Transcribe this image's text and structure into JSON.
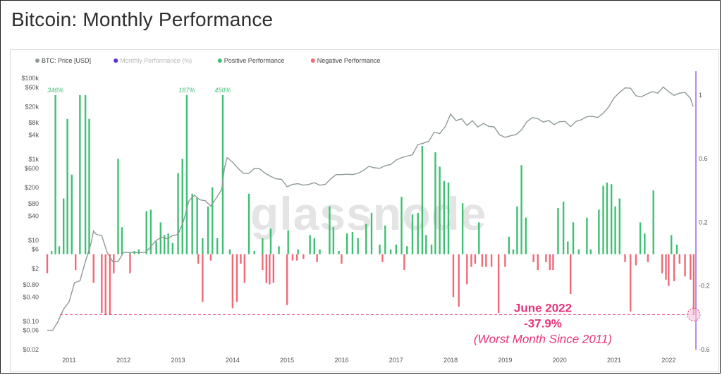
{
  "page": {
    "title": "Bitcoin: Monthly Performance"
  },
  "watermark": "glassnode",
  "colors": {
    "price": "#8e9a96",
    "monthly": "#5b2bd9",
    "positive": "#3fbf73",
    "negative": "#ee6a78",
    "annotation": "#e8337a",
    "right_axis": "#7b3fe4"
  },
  "legend": [
    {
      "label": "BTC: Price [USD]",
      "color": "#8e9a96",
      "muted": false
    },
    {
      "label": "Monthly Performance (%)",
      "color": "#5b2bd9",
      "muted": true
    },
    {
      "label": "Positive Performance",
      "color": "#3fbf73",
      "muted": false
    },
    {
      "label": "Negative Performance",
      "color": "#ee6a78",
      "muted": false
    }
  ],
  "chart_data": {
    "type": "bar",
    "title": "Bitcoin: Monthly Performance",
    "legend_position": "top-left",
    "grid": false,
    "x_ticks": [
      "2011",
      "2012",
      "2013",
      "2014",
      "2015",
      "2016",
      "2017",
      "2018",
      "2019",
      "2020",
      "2021",
      "2022"
    ],
    "x_range": [
      2010.6,
      2022.5
    ],
    "y_left": {
      "scale": "log",
      "range": [
        0.02,
        150000
      ],
      "ticks": [
        "$100k",
        "$60k",
        "$20k",
        "$8k",
        "$4k",
        "$1k",
        "$600",
        "$200",
        "$80",
        "$40",
        "$10",
        "$6",
        "$2",
        "$0.80",
        "$0.40",
        "$0.10",
        "$0.06",
        "$0.02"
      ]
    },
    "y_right": {
      "scale": "linear",
      "range": [
        -0.6,
        1.15
      ],
      "ticks": [
        "1",
        "0.6",
        "0.2",
        "-0.2",
        "-0.6"
      ]
    },
    "series": [
      {
        "name": "BTC: Price [USD]",
        "type": "line",
        "axis": "left",
        "points": [
          [
            2010.6,
            0.06
          ],
          [
            2010.7,
            0.06
          ],
          [
            2010.8,
            0.1
          ],
          [
            2010.9,
            0.2
          ],
          [
            2011.0,
            0.3
          ],
          [
            2011.1,
            0.9
          ],
          [
            2011.2,
            1
          ],
          [
            2011.3,
            3
          ],
          [
            2011.4,
            8
          ],
          [
            2011.45,
            17
          ],
          [
            2011.5,
            14
          ],
          [
            2011.6,
            13
          ],
          [
            2011.7,
            5
          ],
          [
            2011.8,
            3
          ],
          [
            2011.9,
            3
          ],
          [
            2012.0,
            5
          ],
          [
            2012.2,
            5
          ],
          [
            2012.4,
            5
          ],
          [
            2012.5,
            7
          ],
          [
            2012.6,
            10
          ],
          [
            2012.7,
            12
          ],
          [
            2012.8,
            11
          ],
          [
            2012.9,
            13
          ],
          [
            2013.0,
            14
          ],
          [
            2013.1,
            30
          ],
          [
            2013.2,
            95
          ],
          [
            2013.3,
            130
          ],
          [
            2013.4,
            100
          ],
          [
            2013.5,
            95
          ],
          [
            2013.6,
            70
          ],
          [
            2013.7,
            110
          ],
          [
            2013.8,
            180
          ],
          [
            2013.85,
            600
          ],
          [
            2013.9,
            1100
          ],
          [
            2014.0,
            850
          ],
          [
            2014.1,
            600
          ],
          [
            2014.2,
            450
          ],
          [
            2014.3,
            450
          ],
          [
            2014.4,
            600
          ],
          [
            2014.5,
            580
          ],
          [
            2014.6,
            450
          ],
          [
            2014.7,
            380
          ],
          [
            2014.8,
            330
          ],
          [
            2014.9,
            320
          ],
          [
            2015.0,
            210
          ],
          [
            2015.1,
            240
          ],
          [
            2015.2,
            250
          ],
          [
            2015.3,
            230
          ],
          [
            2015.4,
            240
          ],
          [
            2015.5,
            265
          ],
          [
            2015.6,
            230
          ],
          [
            2015.7,
            240
          ],
          [
            2015.8,
            330
          ],
          [
            2015.9,
            420
          ],
          [
            2016.0,
            420
          ],
          [
            2016.1,
            430
          ],
          [
            2016.2,
            420
          ],
          [
            2016.3,
            450
          ],
          [
            2016.4,
            530
          ],
          [
            2016.5,
            670
          ],
          [
            2016.6,
            620
          ],
          [
            2016.7,
            600
          ],
          [
            2016.8,
            700
          ],
          [
            2016.9,
            740
          ],
          [
            2017.0,
            960
          ],
          [
            2017.1,
            1100
          ],
          [
            2017.2,
            1200
          ],
          [
            2017.3,
            1300
          ],
          [
            2017.4,
            2300
          ],
          [
            2017.5,
            2500
          ],
          [
            2017.6,
            2800
          ],
          [
            2017.7,
            4700
          ],
          [
            2017.8,
            4300
          ],
          [
            2017.9,
            6400
          ],
          [
            2018.0,
            13000
          ],
          [
            2018.1,
            9000
          ],
          [
            2018.2,
            10000
          ],
          [
            2018.3,
            6900
          ],
          [
            2018.4,
            9000
          ],
          [
            2018.5,
            6300
          ],
          [
            2018.6,
            7700
          ],
          [
            2018.7,
            6500
          ],
          [
            2018.8,
            6300
          ],
          [
            2018.9,
            4000
          ],
          [
            2019.0,
            3500
          ],
          [
            2019.1,
            3800
          ],
          [
            2019.2,
            4100
          ],
          [
            2019.3,
            5300
          ],
          [
            2019.4,
            8500
          ],
          [
            2019.5,
            10800
          ],
          [
            2019.6,
            10100
          ],
          [
            2019.7,
            8300
          ],
          [
            2019.8,
            9100
          ],
          [
            2019.9,
            7200
          ],
          [
            2020.0,
            8500
          ],
          [
            2020.1,
            8600
          ],
          [
            2020.2,
            6400
          ],
          [
            2020.3,
            8600
          ],
          [
            2020.4,
            9500
          ],
          [
            2020.5,
            11300
          ],
          [
            2020.6,
            11600
          ],
          [
            2020.7,
            10800
          ],
          [
            2020.8,
            13800
          ],
          [
            2020.9,
            19700
          ],
          [
            2021.0,
            33000
          ],
          [
            2021.1,
            45000
          ],
          [
            2021.2,
            58000
          ],
          [
            2021.3,
            57000
          ],
          [
            2021.4,
            37000
          ],
          [
            2021.5,
            35000
          ],
          [
            2021.6,
            41000
          ],
          [
            2021.7,
            47000
          ],
          [
            2021.8,
            43000
          ],
          [
            2021.9,
            61000
          ],
          [
            2022.0,
            47000
          ],
          [
            2022.1,
            38000
          ],
          [
            2022.2,
            43000
          ],
          [
            2022.3,
            45000
          ],
          [
            2022.4,
            32000
          ],
          [
            2022.45,
            20000
          ]
        ]
      },
      {
        "name": "Positive Performance",
        "type": "bar",
        "axis": "right",
        "color": "#3fbf73",
        "points": [
          [
            2010.68,
            0.02
          ],
          [
            2010.75,
            1.0
          ],
          [
            2010.82,
            0.05
          ],
          [
            2010.9,
            0.35
          ],
          [
            2010.97,
            0.85
          ],
          [
            2011.05,
            0.5
          ],
          [
            2011.2,
            1.0
          ],
          [
            2011.3,
            1.0
          ],
          [
            2011.37,
            0.85
          ],
          [
            2011.9,
            0.6
          ],
          [
            2011.97,
            0.17
          ],
          [
            2012.12,
            0.01
          ],
          [
            2012.2,
            0.02
          ],
          [
            2012.28,
            0.03
          ],
          [
            2012.42,
            0.27
          ],
          [
            2012.5,
            0.28
          ],
          [
            2012.6,
            0.08
          ],
          [
            2012.68,
            0.2
          ],
          [
            2012.75,
            0.12
          ],
          [
            2012.82,
            0.13
          ],
          [
            2012.9,
            0.07
          ],
          [
            2013.0,
            0.51
          ],
          [
            2013.08,
            0.6
          ],
          [
            2013.16,
            1.0
          ],
          [
            2013.26,
            0.38
          ],
          [
            2013.35,
            0.36
          ],
          [
            2013.45,
            0.1
          ],
          [
            2013.55,
            0.3
          ],
          [
            2013.63,
            0.42
          ],
          [
            2013.72,
            0.1
          ],
          [
            2013.82,
            1.0
          ],
          [
            2013.95,
            0.03
          ],
          [
            2014.3,
            0.38
          ],
          [
            2014.4,
            0.02
          ],
          [
            2014.55,
            0.1
          ],
          [
            2014.7,
            0.16
          ],
          [
            2014.85,
            0.05
          ],
          [
            2015.02,
            0.15
          ],
          [
            2015.2,
            0.03
          ],
          [
            2015.42,
            0.12
          ],
          [
            2015.5,
            0.1
          ],
          [
            2015.6,
            0.03
          ],
          [
            2015.78,
            0.3
          ],
          [
            2015.85,
            0.17
          ],
          [
            2015.95,
            0.02
          ],
          [
            2016.1,
            0.13
          ],
          [
            2016.2,
            0.14
          ],
          [
            2016.3,
            0.1
          ],
          [
            2016.45,
            0.19
          ],
          [
            2016.55,
            0.26
          ],
          [
            2016.7,
            0.06
          ],
          [
            2016.8,
            0.18
          ],
          [
            2016.9,
            0.03
          ],
          [
            2017.0,
            0.06
          ],
          [
            2017.1,
            0.36
          ],
          [
            2017.2,
            0.05
          ],
          [
            2017.3,
            0.25
          ],
          [
            2017.4,
            0.26
          ],
          [
            2017.48,
            0.68
          ],
          [
            2017.55,
            0.12
          ],
          [
            2017.65,
            0.06
          ],
          [
            2017.72,
            0.64
          ],
          [
            2017.8,
            0.55
          ],
          [
            2017.88,
            0.46
          ],
          [
            2017.96,
            0.45
          ],
          [
            2018.22,
            0.32
          ],
          [
            2018.52,
            0.2
          ],
          [
            2019.07,
            0.11
          ],
          [
            2019.15,
            0.03
          ],
          [
            2019.22,
            0.3
          ],
          [
            2019.3,
            0.56
          ],
          [
            2019.38,
            0.23
          ],
          [
            2019.97,
            0.29
          ],
          [
            2020.07,
            0.33
          ],
          [
            2020.15,
            0.08
          ],
          [
            2020.25,
            0.2
          ],
          [
            2020.35,
            0.03
          ],
          [
            2020.5,
            0.23
          ],
          [
            2020.57,
            0.03
          ],
          [
            2020.72,
            0.28
          ],
          [
            2020.8,
            0.43
          ],
          [
            2020.87,
            0.45
          ],
          [
            2020.95,
            0.44
          ],
          [
            2021.02,
            0.3
          ],
          [
            2021.1,
            0.35
          ],
          [
            2021.48,
            0.2
          ],
          [
            2021.56,
            0.13
          ],
          [
            2021.72,
            0.4
          ],
          [
            2022.05,
            0.12
          ],
          [
            2022.15,
            0.06
          ]
        ]
      },
      {
        "name": "Negative Performance",
        "type": "bar",
        "axis": "right",
        "color": "#ee6a78",
        "points": [
          [
            2010.6,
            -0.12
          ],
          [
            2011.12,
            -0.1
          ],
          [
            2011.45,
            -0.18
          ],
          [
            2011.6,
            -0.37
          ],
          [
            2011.67,
            -0.38
          ],
          [
            2011.75,
            -0.38
          ],
          [
            2011.82,
            -0.12
          ],
          [
            2012.12,
            -0.12
          ],
          [
            2013.37,
            -0.06
          ],
          [
            2013.45,
            -0.3
          ],
          [
            2013.6,
            -0.04
          ],
          [
            2014.0,
            -0.34
          ],
          [
            2014.08,
            -0.3
          ],
          [
            2014.15,
            -0.06
          ],
          [
            2014.22,
            -0.18
          ],
          [
            2014.55,
            -0.1
          ],
          [
            2014.62,
            -0.18
          ],
          [
            2014.68,
            -0.19
          ],
          [
            2014.75,
            -0.18
          ],
          [
            2015.0,
            -0.32
          ],
          [
            2015.1,
            -0.04
          ],
          [
            2015.18,
            -0.04
          ],
          [
            2015.3,
            -0.03
          ],
          [
            2015.55,
            -0.05
          ],
          [
            2016.0,
            -0.06
          ],
          [
            2016.75,
            -0.05
          ],
          [
            2017.15,
            -0.1
          ],
          [
            2018.05,
            -0.27
          ],
          [
            2018.15,
            -0.33
          ],
          [
            2018.3,
            -0.19
          ],
          [
            2018.38,
            -0.08
          ],
          [
            2018.45,
            -0.06
          ],
          [
            2018.58,
            -0.08
          ],
          [
            2018.65,
            -0.08
          ],
          [
            2018.75,
            -0.08
          ],
          [
            2018.88,
            -0.37
          ],
          [
            2019.0,
            -0.08
          ],
          [
            2019.52,
            -0.05
          ],
          [
            2019.6,
            -0.1
          ],
          [
            2019.75,
            -0.05
          ],
          [
            2019.82,
            -0.1
          ],
          [
            2019.88,
            -0.1
          ],
          [
            2020.2,
            -0.25
          ],
          [
            2021.2,
            -0.05
          ],
          [
            2021.3,
            -0.36
          ],
          [
            2021.4,
            -0.07
          ],
          [
            2021.62,
            -0.05
          ],
          [
            2021.88,
            -0.12
          ],
          [
            2021.95,
            -0.16
          ],
          [
            2022.0,
            -0.2
          ],
          [
            2022.1,
            -0.17
          ],
          [
            2022.2,
            -0.06
          ],
          [
            2022.3,
            -0.14
          ],
          [
            2022.4,
            -0.16
          ],
          [
            2022.46,
            -0.38
          ]
        ]
      }
    ],
    "data_labels": [
      {
        "text": "346%",
        "x": 2010.75
      },
      {
        "text": "187%",
        "x": 2013.16
      },
      {
        "text": "450%",
        "x": 2013.82
      }
    ],
    "reference_line": {
      "y": -0.38,
      "axis": "right",
      "style": "dashed"
    },
    "annotation": {
      "lines": [
        "June 2022",
        "-37.9%",
        "(Worst Month Since 2011)"
      ],
      "target_x": 2022.46,
      "target_y": -0.38
    }
  }
}
